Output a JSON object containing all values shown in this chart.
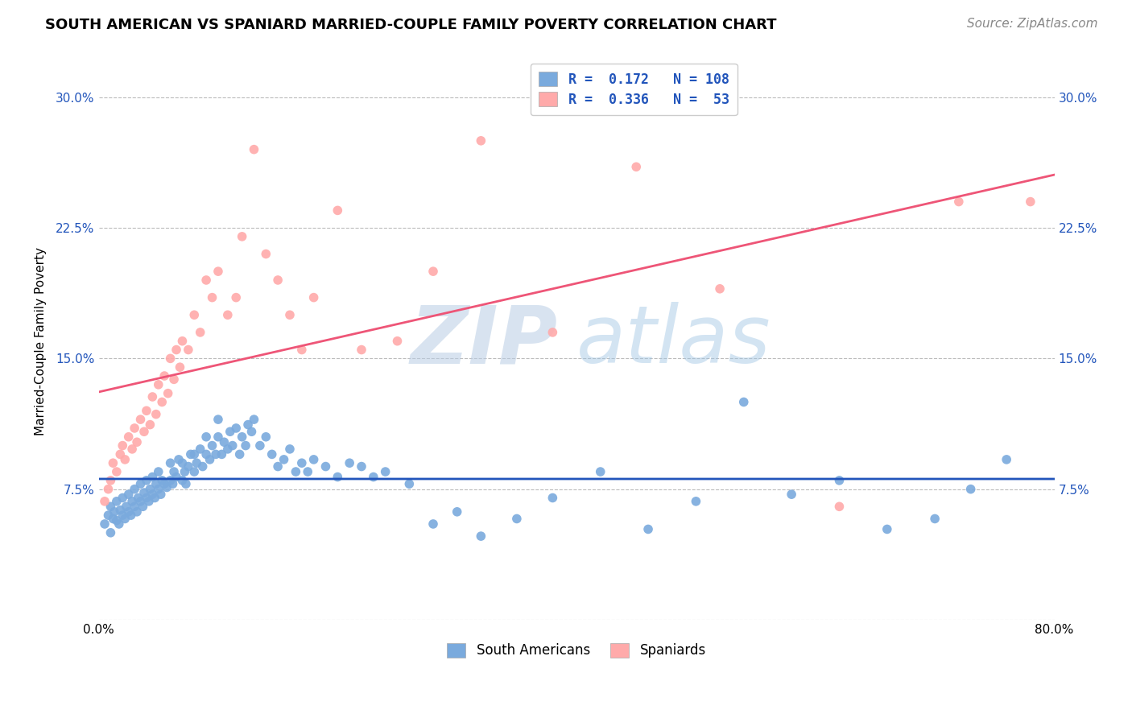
{
  "title": "SOUTH AMERICAN VS SPANIARD MARRIED-COUPLE FAMILY POVERTY CORRELATION CHART",
  "source": "Source: ZipAtlas.com",
  "ylabel": "Married-Couple Family Poverty",
  "xlim": [
    0.0,
    0.8
  ],
  "ylim": [
    0.0,
    0.32
  ],
  "xticks": [
    0.0,
    0.2,
    0.4,
    0.6,
    0.8
  ],
  "xtick_labels": [
    "0.0%",
    "",
    "",
    "",
    "80.0%"
  ],
  "yticks": [
    0.0,
    0.075,
    0.15,
    0.225,
    0.3
  ],
  "ytick_labels": [
    "",
    "7.5%",
    "15.0%",
    "22.5%",
    "30.0%"
  ],
  "blue_color": "#7aaadd",
  "pink_color": "#ffaaaa",
  "blue_line_color": "#2255bb",
  "pink_line_color": "#ee5577",
  "legend_text_color": "#2255bb",
  "watermark_zip": "ZIP",
  "watermark_atlas": "atlas",
  "R_blue": 0.172,
  "N_blue": 108,
  "R_pink": 0.336,
  "N_pink": 53,
  "blue_scatter_x": [
    0.005,
    0.008,
    0.01,
    0.01,
    0.012,
    0.013,
    0.015,
    0.015,
    0.017,
    0.018,
    0.02,
    0.02,
    0.022,
    0.023,
    0.025,
    0.025,
    0.027,
    0.028,
    0.03,
    0.03,
    0.032,
    0.033,
    0.035,
    0.035,
    0.037,
    0.038,
    0.04,
    0.04,
    0.042,
    0.043,
    0.045,
    0.045,
    0.047,
    0.048,
    0.05,
    0.05,
    0.052,
    0.053,
    0.055,
    0.057,
    0.06,
    0.06,
    0.062,
    0.063,
    0.065,
    0.067,
    0.07,
    0.07,
    0.072,
    0.073,
    0.075,
    0.077,
    0.08,
    0.08,
    0.082,
    0.085,
    0.087,
    0.09,
    0.09,
    0.093,
    0.095,
    0.098,
    0.1,
    0.1,
    0.103,
    0.105,
    0.108,
    0.11,
    0.112,
    0.115,
    0.118,
    0.12,
    0.123,
    0.125,
    0.128,
    0.13,
    0.135,
    0.14,
    0.145,
    0.15,
    0.155,
    0.16,
    0.165,
    0.17,
    0.175,
    0.18,
    0.19,
    0.2,
    0.21,
    0.22,
    0.23,
    0.24,
    0.26,
    0.28,
    0.3,
    0.32,
    0.35,
    0.38,
    0.42,
    0.46,
    0.5,
    0.54,
    0.58,
    0.62,
    0.66,
    0.7,
    0.73,
    0.76
  ],
  "blue_scatter_y": [
    0.055,
    0.06,
    0.05,
    0.065,
    0.058,
    0.062,
    0.057,
    0.068,
    0.055,
    0.063,
    0.06,
    0.07,
    0.058,
    0.065,
    0.062,
    0.072,
    0.06,
    0.068,
    0.065,
    0.075,
    0.062,
    0.07,
    0.068,
    0.078,
    0.065,
    0.073,
    0.07,
    0.08,
    0.068,
    0.075,
    0.072,
    0.082,
    0.07,
    0.078,
    0.075,
    0.085,
    0.072,
    0.08,
    0.078,
    0.076,
    0.08,
    0.09,
    0.078,
    0.085,
    0.082,
    0.092,
    0.08,
    0.09,
    0.085,
    0.078,
    0.088,
    0.095,
    0.085,
    0.095,
    0.09,
    0.098,
    0.088,
    0.095,
    0.105,
    0.092,
    0.1,
    0.095,
    0.105,
    0.115,
    0.095,
    0.102,
    0.098,
    0.108,
    0.1,
    0.11,
    0.095,
    0.105,
    0.1,
    0.112,
    0.108,
    0.115,
    0.1,
    0.105,
    0.095,
    0.088,
    0.092,
    0.098,
    0.085,
    0.09,
    0.085,
    0.092,
    0.088,
    0.082,
    0.09,
    0.088,
    0.082,
    0.085,
    0.078,
    0.055,
    0.062,
    0.048,
    0.058,
    0.07,
    0.085,
    0.052,
    0.068,
    0.125,
    0.072,
    0.08,
    0.052,
    0.058,
    0.075,
    0.092
  ],
  "pink_scatter_x": [
    0.005,
    0.008,
    0.01,
    0.012,
    0.015,
    0.018,
    0.02,
    0.022,
    0.025,
    0.028,
    0.03,
    0.032,
    0.035,
    0.038,
    0.04,
    0.043,
    0.045,
    0.048,
    0.05,
    0.053,
    0.055,
    0.058,
    0.06,
    0.063,
    0.065,
    0.068,
    0.07,
    0.075,
    0.08,
    0.085,
    0.09,
    0.095,
    0.1,
    0.108,
    0.115,
    0.12,
    0.13,
    0.14,
    0.15,
    0.16,
    0.17,
    0.18,
    0.2,
    0.22,
    0.25,
    0.28,
    0.32,
    0.38,
    0.45,
    0.52,
    0.62,
    0.72,
    0.78
  ],
  "pink_scatter_y": [
    0.068,
    0.075,
    0.08,
    0.09,
    0.085,
    0.095,
    0.1,
    0.092,
    0.105,
    0.098,
    0.11,
    0.102,
    0.115,
    0.108,
    0.12,
    0.112,
    0.128,
    0.118,
    0.135,
    0.125,
    0.14,
    0.13,
    0.15,
    0.138,
    0.155,
    0.145,
    0.16,
    0.155,
    0.175,
    0.165,
    0.195,
    0.185,
    0.2,
    0.175,
    0.185,
    0.22,
    0.27,
    0.21,
    0.195,
    0.175,
    0.155,
    0.185,
    0.235,
    0.155,
    0.16,
    0.2,
    0.275,
    0.165,
    0.26,
    0.19,
    0.065,
    0.24,
    0.24
  ],
  "grid_color": "#bbbbbb",
  "background_color": "#ffffff",
  "title_fontsize": 13,
  "source_fontsize": 11,
  "axis_label_fontsize": 11,
  "tick_fontsize": 11,
  "legend_fontsize": 12
}
